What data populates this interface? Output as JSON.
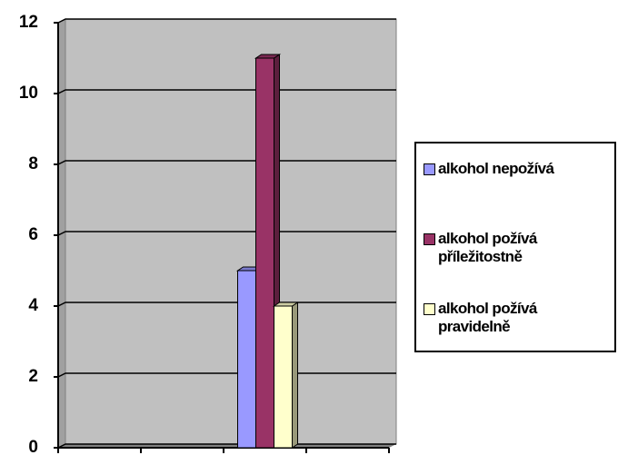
{
  "chart_data": {
    "type": "bar",
    "categories": [
      null,
      null,
      null,
      null
    ],
    "series": [
      {
        "name": "alkohol nepožívá",
        "color": "#9999ff",
        "values": [
          null,
          null,
          5,
          null
        ]
      },
      {
        "name": "alkohol požívá příležitostně",
        "color": "#993366",
        "values": [
          null,
          null,
          11,
          null
        ]
      },
      {
        "name": "alkohol požívá pravidelně",
        "color": "#ffffcc",
        "values": [
          null,
          null,
          4,
          null
        ]
      }
    ],
    "ylim": [
      0,
      12
    ],
    "yticks": [
      0,
      2,
      4,
      6,
      8,
      10,
      12
    ],
    "grid": true,
    "legend": "right"
  }
}
